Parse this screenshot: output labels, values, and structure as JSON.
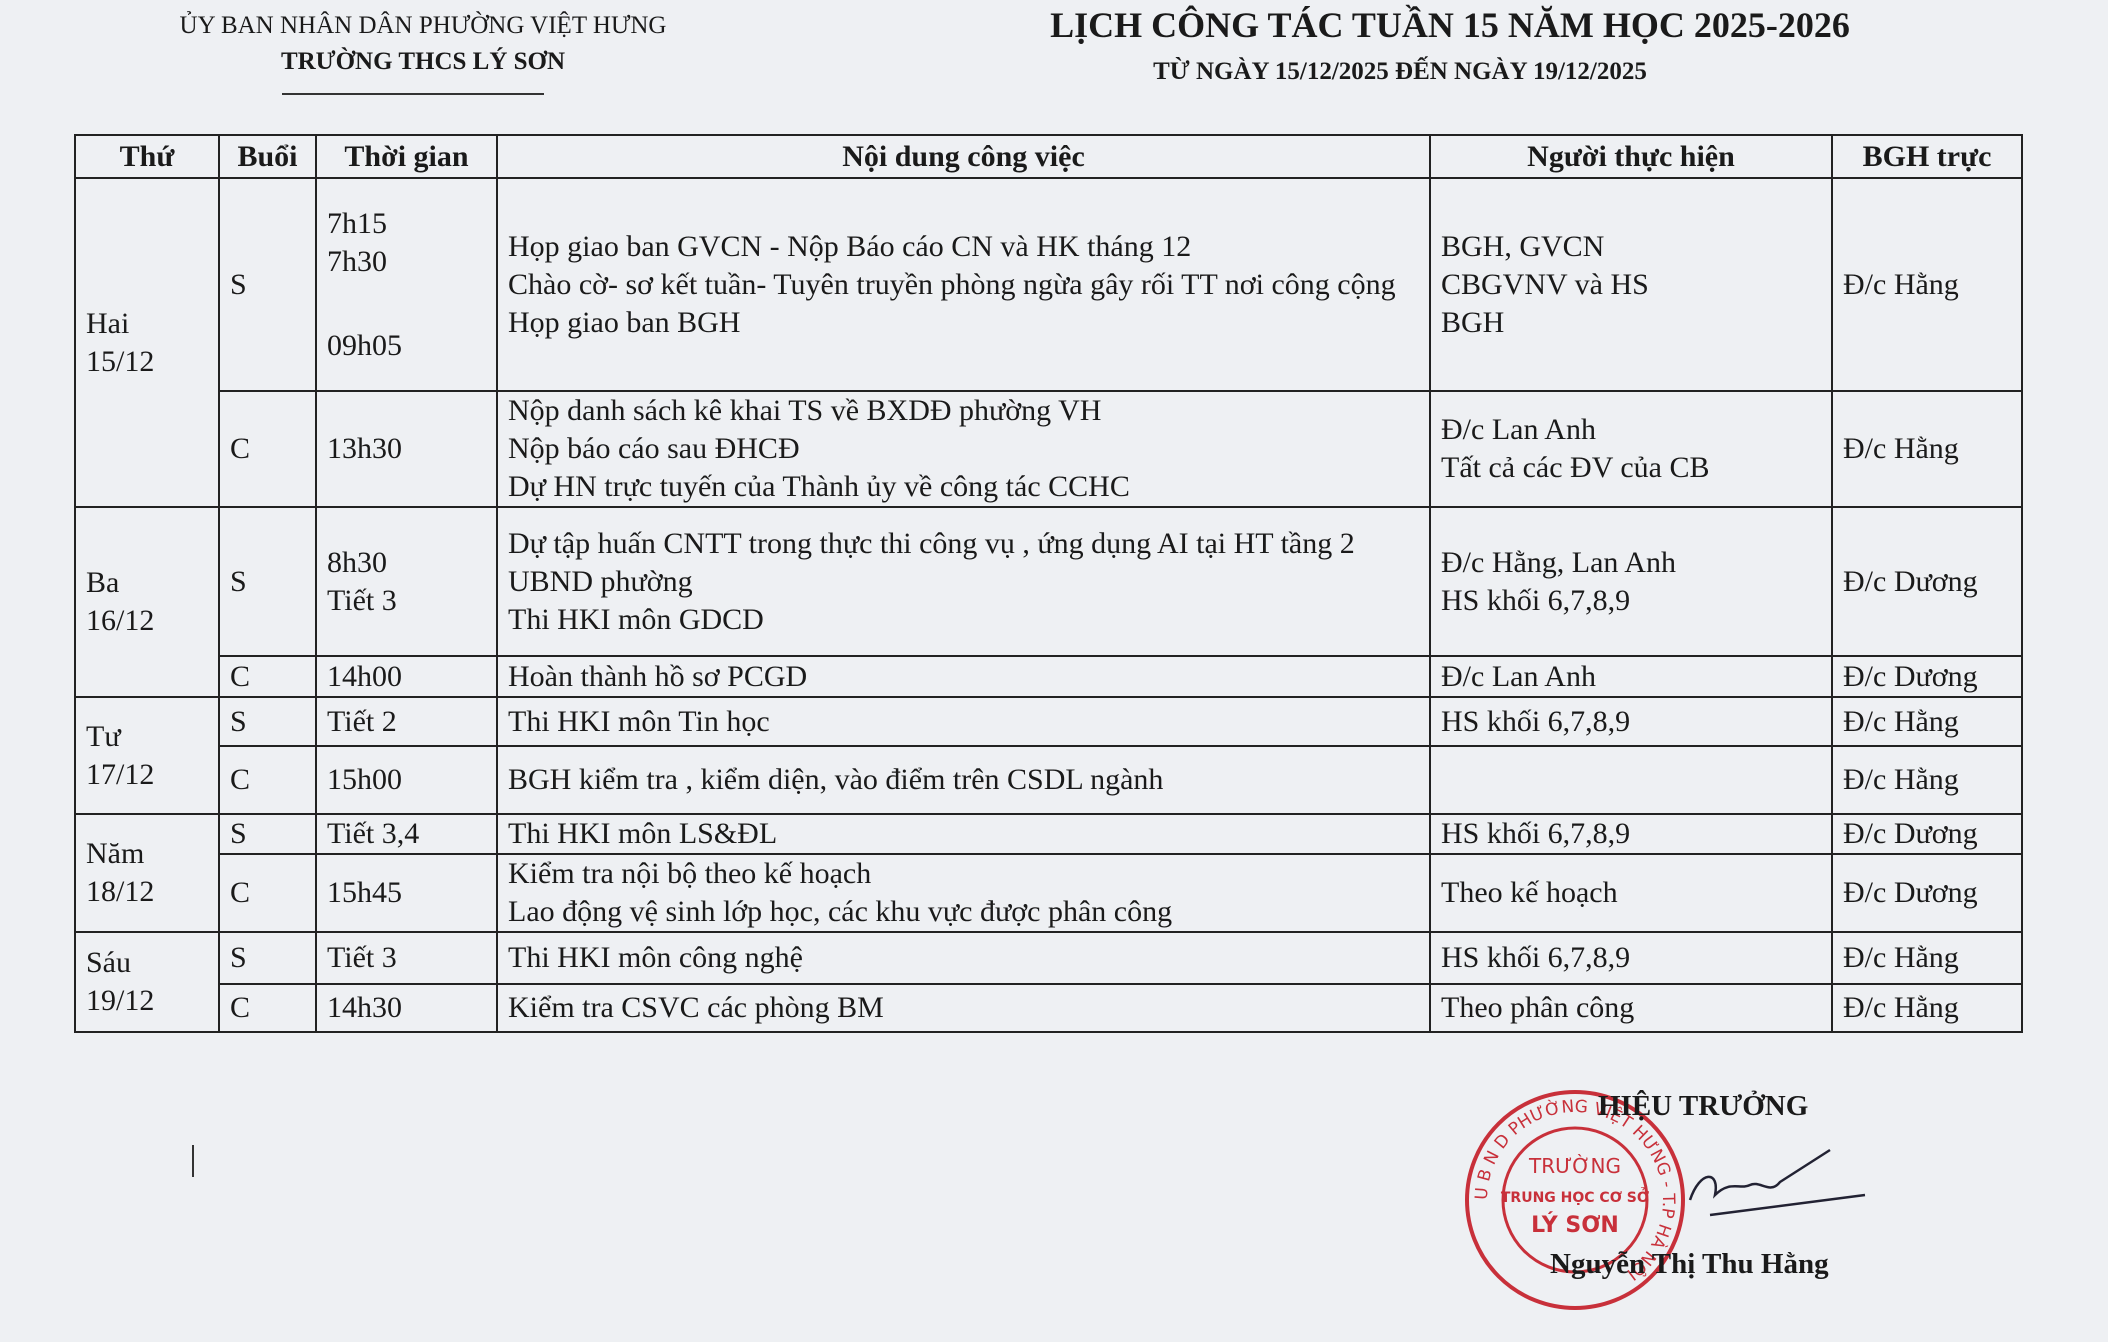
{
  "header": {
    "agency": "ỦY BAN NHÂN DÂN PHƯỜNG VIỆT HƯNG",
    "school": "TRƯỜNG THCS LÝ SƠN",
    "title": "LỊCH CÔNG TÁC TUẦN 15 NĂM HỌC 2025-2026",
    "subtitle": "TỪ NGÀY 15/12/2025  ĐẾN NGÀY 19/12/2025"
  },
  "table": {
    "columns": [
      "Thứ",
      "Buổi",
      "Thời gian",
      "Nội dung công việc",
      "Người thực hiện",
      "BGH trực"
    ],
    "days": [
      {
        "day": "Hai",
        "date": "15/12",
        "sessions": [
          {
            "session": "S",
            "times": [
              "7h15",
              "7h30",
              "09h05"
            ],
            "tasks": [
              "Họp giao ban GVCN - Nộp Báo cáo CN và HK tháng 12",
              "Chào cờ- sơ kết tuần- Tuyên truyền phòng ngừa gây rối TT nơi công cộng",
              "Họp giao ban BGH"
            ],
            "people": [
              "BGH, GVCN",
              "CBGVNV và HS",
              "BGH"
            ],
            "duty": "Đ/c Hằng"
          },
          {
            "session": "C",
            "times": [
              "13h30"
            ],
            "tasks": [
              "Nộp danh sách kê khai TS về BXDĐ phường VH",
              "Nộp báo cáo sau ĐHCĐ",
              "Dự HN trực tuyến của Thành ủy về công tác CCHC"
            ],
            "people": [
              "Đ/c Lan Anh",
              "Tất cả các ĐV của CB"
            ],
            "duty": "Đ/c Hằng"
          }
        ]
      },
      {
        "day": "Ba",
        "date": "16/12",
        "sessions": [
          {
            "session": "S",
            "times": [
              "8h30",
              "Tiết 3"
            ],
            "tasks": [
              "Dự tập huấn CNTT trong thực thi công vụ , ứng dụng AI  tại HT tầng 2 UBND phường",
              "Thi  HKI môn GDCD"
            ],
            "people": [
              "Đ/c Hằng, Lan Anh",
              "HS khối 6,7,8,9"
            ],
            "duty": "Đ/c Dương"
          },
          {
            "session": "C",
            "times": [
              "14h00"
            ],
            "tasks": [
              "Hoàn thành hồ sơ PCGD"
            ],
            "people": [
              "Đ/c Lan Anh"
            ],
            "duty": "Đ/c Dương"
          }
        ]
      },
      {
        "day": "Tư",
        "date": "17/12",
        "sessions": [
          {
            "session": "S",
            "times": [
              "Tiết 2"
            ],
            "tasks": [
              "Thi HKI môn Tin học"
            ],
            "people": [
              "HS khối 6,7,8,9"
            ],
            "duty": "Đ/c Hằng"
          },
          {
            "session": "C",
            "times": [
              "15h00"
            ],
            "tasks": [
              "BGH kiểm tra , kiểm diện, vào điểm trên CSDL ngành"
            ],
            "people": [],
            "duty": "Đ/c Hằng"
          }
        ]
      },
      {
        "day": "Năm",
        "date": "18/12",
        "sessions": [
          {
            "session": "S",
            "times": [
              "Tiết 3,4"
            ],
            "tasks": [
              "Thi  HKI môn LS&ĐL"
            ],
            "people": [
              "HS khối 6,7,8,9"
            ],
            "duty": "Đ/c Dương"
          },
          {
            "session": "C",
            "times": [
              "15h45"
            ],
            "tasks": [
              "Kiểm tra nội bộ theo kế hoạch",
              "Lao động vệ sinh lớp học, các khu vực được phân công"
            ],
            "people": [
              "Theo kế hoạch"
            ],
            "duty": "Đ/c Dương"
          }
        ]
      },
      {
        "day": "Sáu",
        "date": "19/12",
        "sessions": [
          {
            "session": "S",
            "times": [
              "Tiết 3"
            ],
            "tasks": [
              "Thi HKI môn công nghệ"
            ],
            "people": [
              "HS khối 6,7,8,9"
            ],
            "duty": "Đ/c Hằng"
          },
          {
            "session": "C",
            "times": [
              "14h30"
            ],
            "tasks": [
              "Kiểm tra CSVC các phòng BM"
            ],
            "people": [
              "Theo phân công"
            ],
            "duty": "Đ/c Hằng"
          }
        ]
      }
    ]
  },
  "signature": {
    "role": "HIỆU TRƯỞNG",
    "name": "Nguyễn Thị Thu Hằng"
  },
  "stamp": {
    "ring": "U B N D PHƯỜNG VIỆT HƯNG - T.P HÀ NỘI",
    "line1": "TRƯỜNG",
    "line2": "TRUNG HỌC CƠ SỞ",
    "line3": "LÝ SƠN"
  }
}
